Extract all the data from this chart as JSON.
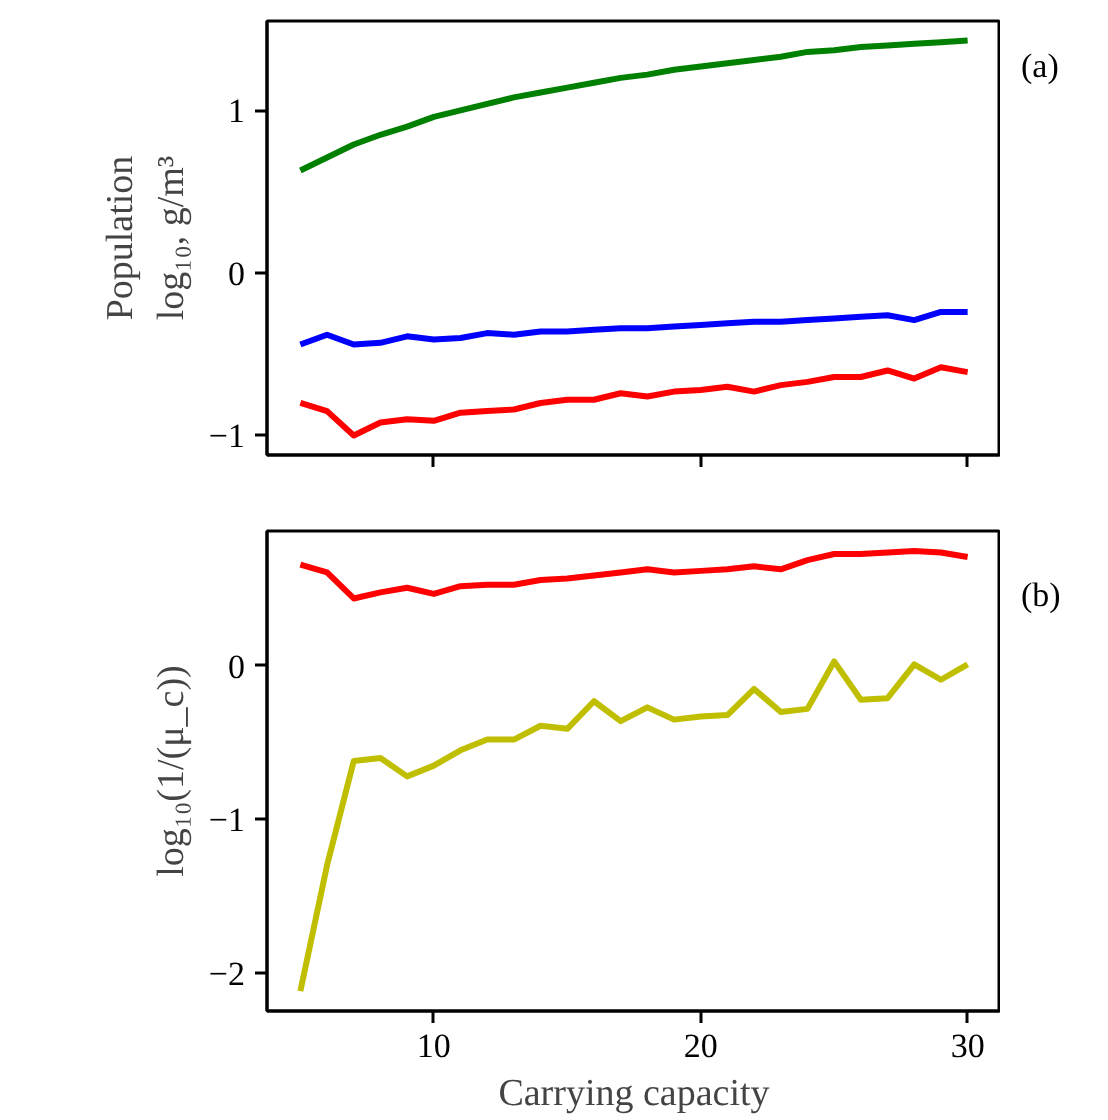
{
  "chart_data": [
    {
      "type": "line",
      "ylabel": "Population\nlog₁₀, g/m³",
      "annotations": [
        "(a)"
      ],
      "x": [
        5,
        6,
        7,
        8,
        9,
        10,
        11,
        12,
        13,
        14,
        15,
        16,
        17,
        18,
        19,
        20,
        21,
        22,
        23,
        24,
        25,
        26,
        27,
        28,
        29,
        30
      ],
      "xlim": [
        3.75,
        31.25
      ],
      "ylim": [
        -1.12,
        1.55
      ],
      "xticks": [
        10,
        20,
        30
      ],
      "yticks": [
        -1,
        0,
        1
      ],
      "tick_labels": "y",
      "grid": false,
      "line_style": "solid",
      "series": [
        {
          "color": "#008000",
          "values": [
            0.63,
            0.71,
            0.79,
            0.85,
            0.9,
            0.96,
            1.0,
            1.04,
            1.08,
            1.11,
            1.14,
            1.17,
            1.2,
            1.22,
            1.25,
            1.27,
            1.29,
            1.31,
            1.33,
            1.36,
            1.37,
            1.39,
            1.4,
            1.41,
            1.42,
            1.43
          ]
        },
        {
          "color": "#0000ff",
          "values": [
            -0.44,
            -0.38,
            -0.44,
            -0.43,
            -0.39,
            -0.41,
            -0.4,
            -0.37,
            -0.38,
            -0.36,
            -0.36,
            -0.35,
            -0.34,
            -0.34,
            -0.33,
            -0.32,
            -0.31,
            -0.3,
            -0.3,
            -0.29,
            -0.28,
            -0.27,
            -0.26,
            -0.29,
            -0.24,
            -0.24
          ]
        },
        {
          "color": "#ff0000",
          "values": [
            -0.8,
            -0.85,
            -1.0,
            -0.92,
            -0.9,
            -0.91,
            -0.86,
            -0.85,
            -0.84,
            -0.8,
            -0.78,
            -0.78,
            -0.74,
            -0.76,
            -0.73,
            -0.72,
            -0.7,
            -0.73,
            -0.69,
            -0.67,
            -0.64,
            -0.64,
            -0.6,
            -0.65,
            -0.58,
            -0.61
          ]
        }
      ]
    },
    {
      "type": "line",
      "xlabel": "Carrying capacity",
      "ylabel": "log₁₀(1/(μ_c))",
      "annotations": [
        "(b)"
      ],
      "x": [
        5,
        6,
        7,
        8,
        9,
        10,
        11,
        12,
        13,
        14,
        15,
        16,
        17,
        18,
        19,
        20,
        21,
        22,
        23,
        24,
        25,
        26,
        27,
        28,
        29,
        30
      ],
      "xlim": [
        3.75,
        31.25
      ],
      "ylim": [
        -2.25,
        0.88
      ],
      "xticks": [
        10,
        20,
        30
      ],
      "yticks": [
        -2,
        -1,
        0
      ],
      "grid": false,
      "line_style": "solid",
      "series": [
        {
          "color": "#ff0000",
          "values": [
            0.66,
            0.61,
            0.44,
            0.48,
            0.51,
            0.47,
            0.52,
            0.53,
            0.53,
            0.56,
            0.57,
            0.59,
            0.61,
            0.63,
            0.61,
            0.62,
            0.63,
            0.65,
            0.63,
            0.69,
            0.73,
            0.73,
            0.74,
            0.75,
            0.74,
            0.71
          ]
        },
        {
          "color": "#bfbf00",
          "values": [
            -2.12,
            -1.3,
            -0.62,
            -0.6,
            -0.72,
            -0.65,
            -0.55,
            -0.48,
            -0.48,
            -0.39,
            -0.41,
            -0.23,
            -0.36,
            -0.27,
            -0.35,
            -0.33,
            -0.32,
            -0.15,
            -0.3,
            -0.28,
            0.03,
            -0.22,
            -0.21,
            0.01,
            -0.09,
            0.01
          ]
        }
      ]
    }
  ]
}
